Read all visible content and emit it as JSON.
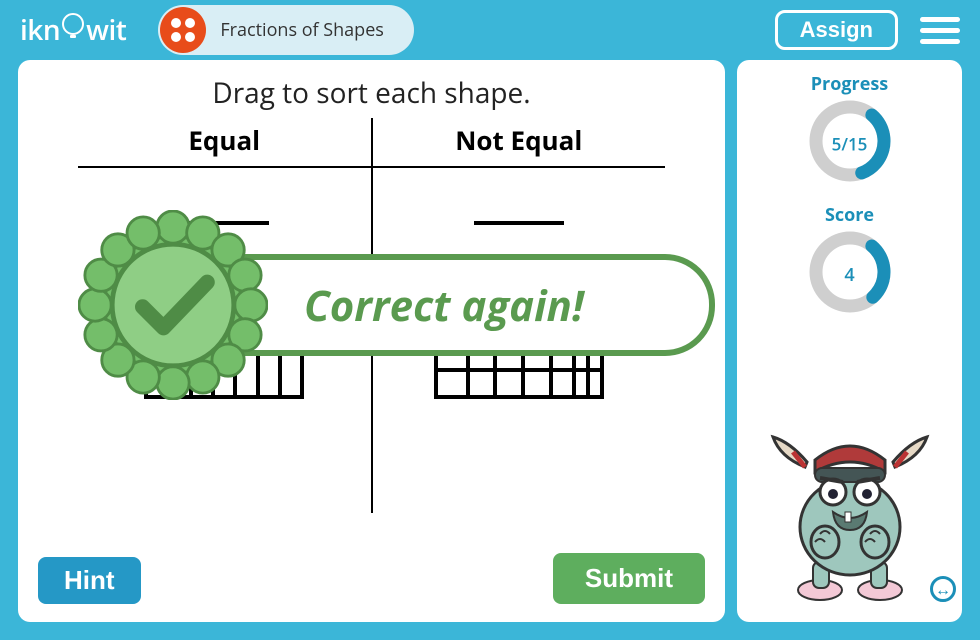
{
  "header": {
    "logo_pre": "ikn",
    "logo_post": "wit",
    "lesson_title": "Fractions of Shapes",
    "lesson_badge_color": "#e84c1a",
    "assign_label": "Assign"
  },
  "main": {
    "instruction": "Drag to sort each shape.",
    "columns": {
      "equal_label": "Equal",
      "not_equal_label": "Not Equal"
    },
    "feedback": {
      "message": "Correct again!",
      "banner_border": "#5a9a4f",
      "text_color": "#5a9a4f",
      "seal_fill": "#74be6a",
      "seal_border": "#4f8c46",
      "check_color": "#4f8c46"
    },
    "shapes": {
      "equal_column": [
        {
          "type": "rect-strip",
          "parts": 7,
          "visible_top_only": true
        },
        {
          "type": "rect-strip",
          "parts": 7
        }
      ],
      "not_equal_column": [
        {
          "type": "rect-strip",
          "parts": 7,
          "visible_top_only": true
        },
        {
          "type": "grid-uneven",
          "rows": 2,
          "cols": 7
        }
      ]
    },
    "hint_label": "Hint",
    "submit_label": "Submit",
    "hint_color": "#2598c6",
    "submit_color": "#5eae5e"
  },
  "sidebar": {
    "progress": {
      "label": "Progress",
      "current": 5,
      "total": 15,
      "display": "5/15",
      "ring_fill": "#1b8fb8",
      "ring_bg": "#cfcfcf",
      "fraction": 0.333
    },
    "score": {
      "label": "Score",
      "value": "4",
      "ring_fill": "#1b8fb8",
      "ring_bg": "#cfcfcf",
      "fraction": 0.27
    },
    "arrow_glyph": "↔"
  },
  "colors": {
    "app_bg": "#3bb6d8",
    "pill_bg": "#d9eef5",
    "text_dark": "#222222"
  }
}
